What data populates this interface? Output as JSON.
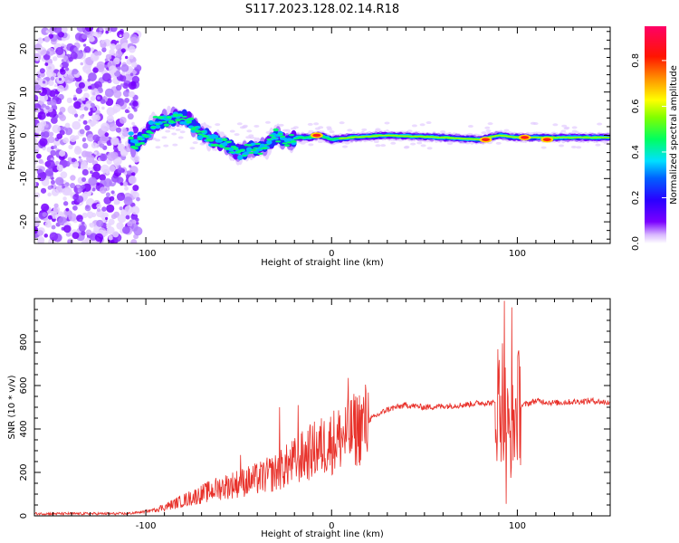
{
  "title": "S117.2023.128.02.14.R18",
  "colors": {
    "snr_line": "#e8312a",
    "frame": "#000000"
  },
  "chart_data": [
    {
      "type": "heatmap",
      "xlabel": "Height of straight line (km)",
      "ylabel": "Frequency (Hz)",
      "xlim": [
        -160,
        150
      ],
      "ylim": [
        -25,
        25
      ],
      "xticks": [
        -100,
        0,
        100
      ],
      "yticks": [
        -20,
        -10,
        0,
        10,
        20
      ],
      "colorbar": {
        "label": "Normalized spectral amplitude",
        "range": [
          0,
          0.95
        ],
        "ticks": [
          0.0,
          0.2,
          0.4,
          0.6,
          0.8
        ]
      },
      "ridge": [
        {
          "x": -107,
          "f": -2.5
        },
        {
          "x": -100,
          "f": 0
        },
        {
          "x": -95,
          "f": 3
        },
        {
          "x": -85,
          "f": 4
        },
        {
          "x": -78,
          "f": 4
        },
        {
          "x": -72,
          "f": 1
        },
        {
          "x": -65,
          "f": -1
        },
        {
          "x": -58,
          "f": -2
        },
        {
          "x": -50,
          "f": -4
        },
        {
          "x": -43,
          "f": -3
        },
        {
          "x": -36,
          "f": -3
        },
        {
          "x": -30,
          "f": 0
        },
        {
          "x": -24,
          "f": -1.5
        },
        {
          "x": -18,
          "f": -0.5
        },
        {
          "x": -12,
          "f": -0.5
        },
        {
          "x": -6,
          "f": 0
        },
        {
          "x": 0,
          "f": -1
        },
        {
          "x": 10,
          "f": -0.5
        },
        {
          "x": 30,
          "f": 0
        },
        {
          "x": 60,
          "f": -0.5
        },
        {
          "x": 80,
          "f": -1
        },
        {
          "x": 90,
          "f": 0
        },
        {
          "x": 100,
          "f": -0.5
        },
        {
          "x": 130,
          "f": -0.5
        },
        {
          "x": 150,
          "f": -0.5
        }
      ],
      "peak_spots": [
        {
          "x": -8,
          "f": 0,
          "amplitude": 0.95
        },
        {
          "x": 83,
          "f": -1,
          "amplitude": 0.9
        },
        {
          "x": 104,
          "f": -0.5,
          "amplitude": 0.9
        },
        {
          "x": 116,
          "f": -1,
          "amplitude": 0.75
        }
      ]
    },
    {
      "type": "line",
      "xlabel": "Height of straight line (km)",
      "ylabel": "SNR (10 * v/v)",
      "xlim": [
        -160,
        150
      ],
      "ylim": [
        0,
        1000
      ],
      "xticks": [
        -100,
        0,
        100
      ],
      "yticks": [
        0,
        200,
        400,
        600,
        800
      ],
      "envelope": {
        "x": [
          -160,
          -110,
          -100,
          -90,
          -80,
          -70,
          -60,
          -50,
          -40,
          -30,
          -20,
          -10,
          0,
          10,
          20,
          30,
          40,
          50,
          60,
          70,
          80,
          88,
          92,
          96,
          100,
          110,
          120,
          130,
          140,
          150
        ],
        "y": [
          10,
          10,
          20,
          40,
          70,
          100,
          130,
          150,
          170,
          200,
          250,
          300,
          340,
          380,
          440,
          490,
          510,
          500,
          505,
          510,
          520,
          520,
          550,
          350,
          500,
          530,
          520,
          525,
          530,
          520
        ]
      },
      "spikes": [
        {
          "x": -49,
          "y": 280
        },
        {
          "x": -28,
          "y": 500
        },
        {
          "x": -18,
          "y": 510
        },
        {
          "x": 9,
          "y": 635
        },
        {
          "x": 93,
          "y": 990
        },
        {
          "x": 97,
          "y": 960
        },
        {
          "x": 94,
          "y": 55
        }
      ]
    }
  ]
}
